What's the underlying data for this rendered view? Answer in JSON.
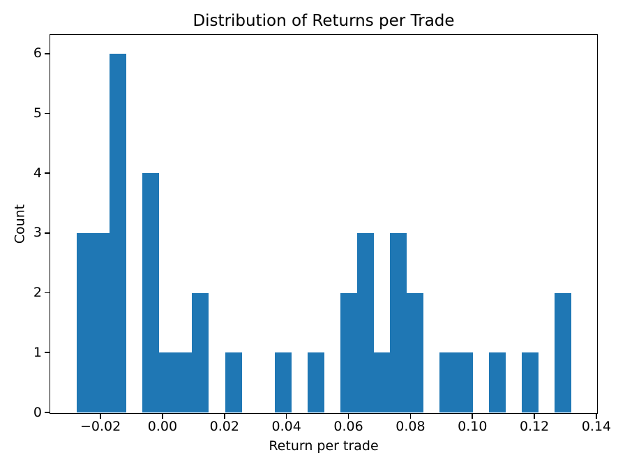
{
  "chart_data": {
    "type": "bar",
    "subtype": "histogram",
    "title": "Distribution of Returns per Trade",
    "xlabel": "Return per trade",
    "ylabel": "Count",
    "bar_color": "#1f77b4",
    "background_color": "#ffffff",
    "spine_color": "#000000",
    "text_color": "#000000",
    "grid": false,
    "legend": false,
    "bins": 30,
    "bin_start": -0.0277,
    "bin_width": 0.00532,
    "counts": [
      3,
      3,
      6,
      0,
      4,
      1,
      1,
      2,
      0,
      1,
      0,
      0,
      1,
      0,
      1,
      0,
      2,
      3,
      1,
      3,
      2,
      0,
      1,
      1,
      0,
      1,
      0,
      1,
      0,
      2
    ],
    "xlim": [
      -0.036,
      0.14
    ],
    "ylim": [
      0,
      6.3
    ],
    "x_ticks": [
      {
        "value": -0.02,
        "label": "−0.02"
      },
      {
        "value": 0.0,
        "label": "0.00"
      },
      {
        "value": 0.02,
        "label": "0.02"
      },
      {
        "value": 0.04,
        "label": "0.04"
      },
      {
        "value": 0.06,
        "label": "0.06"
      },
      {
        "value": 0.08,
        "label": "0.08"
      },
      {
        "value": 0.1,
        "label": "0.10"
      },
      {
        "value": 0.12,
        "label": "0.12"
      },
      {
        "value": 0.14,
        "label": "0.14"
      }
    ],
    "y_ticks": [
      {
        "value": 0,
        "label": "0"
      },
      {
        "value": 1,
        "label": "1"
      },
      {
        "value": 2,
        "label": "2"
      },
      {
        "value": 3,
        "label": "3"
      },
      {
        "value": 4,
        "label": "4"
      },
      {
        "value": 5,
        "label": "5"
      },
      {
        "value": 6,
        "label": "6"
      }
    ]
  }
}
